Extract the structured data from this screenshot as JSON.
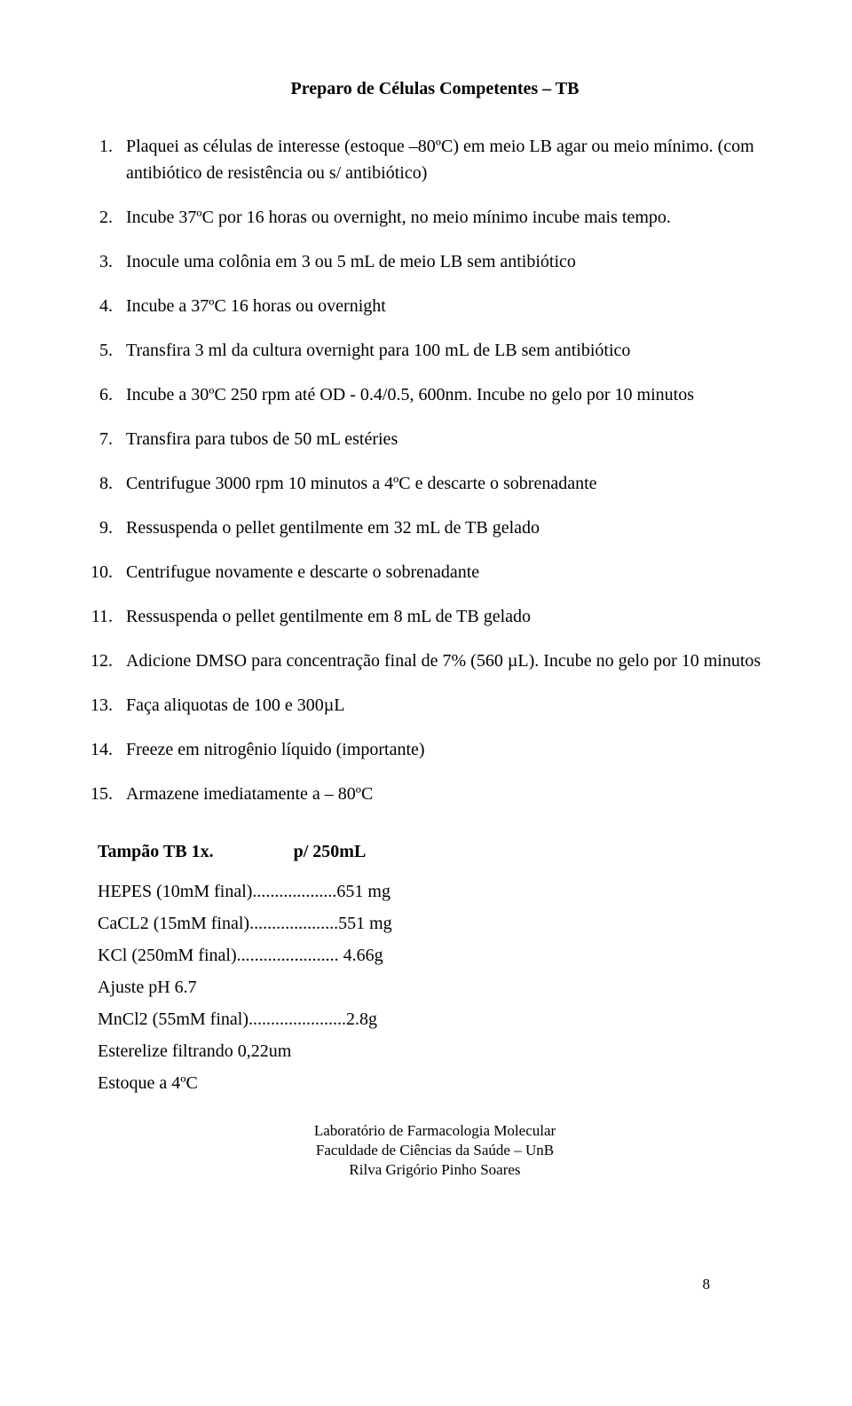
{
  "title": "Preparo de Células Competentes – TB",
  "steps": [
    "Plaquei as células de interesse (estoque –80ºC) em meio LB agar  ou meio mínimo. (com antibiótico de resistência ou s/ antibiótico)",
    "Incube 37ºC por 16 horas ou overnight, no meio mínimo incube mais tempo.",
    "Inocule uma colônia em 3 ou 5 mL de meio LB  sem antibiótico",
    "Incube a 37ºC 16 horas ou overnight",
    "Transfira 3 ml da cultura overnight para 100 mL de LB sem antibiótico",
    "Incube a 30ºC 250 rpm até OD - 0.4/0.5, 600nm. Incube no gelo por 10 minutos",
    "Transfira para tubos de 50 mL estéries",
    "Centrifugue 3000 rpm 10 minutos a 4ºC e descarte o sobrenadante",
    "Ressuspenda o pellet gentilmente em 32 mL de TB gelado",
    "Centrifugue novamente e descarte o sobrenadante",
    "Ressuspenda o pellet gentilmente em 8  mL  de TB gelado",
    "Adicione DMSO para concentração final de 7% (560 µL).  Incube no gelo por 10 minutos",
    "Faça aliquotas de 100 e 300µL",
    "Freeze em nitrogênio líquido (importante)",
    "Armazene imediatamente a – 80ºC"
  ],
  "buffer": {
    "heading_left": "Tampão TB 1x.",
    "heading_right": "p/ 250mL",
    "lines": [
      "HEPES (10mM final)...................651 mg",
      "CaCL2 (15mM final)....................551 mg",
      "KCl (250mM final)....................... 4.66g",
      "Ajuste pH 6.7",
      "MnCl2 (55mM final)......................2.8g",
      "Esterelize filtrando 0,22um",
      "Estoque a 4ºC"
    ]
  },
  "footer": {
    "l1": "Laboratório de Farmacologia Molecular",
    "l2": "Faculdade de Ciências da Saúde – UnB",
    "l3": "Rilva Grigório Pinho Soares"
  },
  "page_number": "8"
}
